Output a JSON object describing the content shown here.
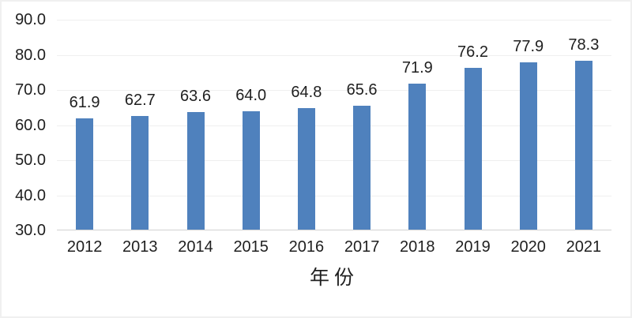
{
  "chart_data": {
    "type": "bar",
    "categories": [
      "2012",
      "2013",
      "2014",
      "2015",
      "2016",
      "2017",
      "2018",
      "2019",
      "2020",
      "2021"
    ],
    "values": [
      61.9,
      62.7,
      63.6,
      64.0,
      64.8,
      65.6,
      71.9,
      76.2,
      77.9,
      78.3
    ],
    "value_labels": [
      "61.9",
      "62.7",
      "63.6",
      "64.0",
      "64.8",
      "65.6",
      "71.9",
      "76.2",
      "77.9",
      "78.3"
    ],
    "title": "",
    "xlabel": "年份",
    "ylabel": "",
    "ylim": [
      30,
      90
    ],
    "ytick_interval": 10,
    "ytick_labels": [
      "90.0",
      "80.0",
      "70.0",
      "60.0",
      "50.0",
      "40.0",
      "30.0"
    ],
    "grid": true,
    "legend": false,
    "colors": {
      "bar": "#4f81bd",
      "gridline": "#efefef",
      "axis_line": "#d2d2d2",
      "label_text": "#1f1f1f",
      "frame_border": "#f0f0f0"
    }
  }
}
